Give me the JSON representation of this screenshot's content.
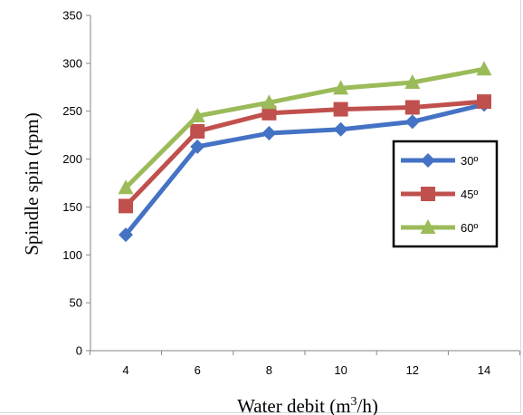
{
  "chart_data": {
    "type": "line",
    "x": [
      4,
      6,
      8,
      10,
      12,
      14
    ],
    "xlabel": "Water debit (m3/h)",
    "ylabel": "Spindle spin (rpm)",
    "ylim": [
      0,
      350
    ],
    "yticks": [
      0,
      50,
      100,
      150,
      200,
      250,
      300,
      350
    ],
    "grid": false,
    "legend_position": "right",
    "series": [
      {
        "name": "30º",
        "color": "#4472c4",
        "marker": "diamond",
        "values": [
          121,
          213,
          227,
          231,
          239,
          257
        ]
      },
      {
        "name": "45º",
        "color": "#c0504d",
        "marker": "square",
        "values": [
          151,
          229,
          248,
          252,
          254,
          260
        ]
      },
      {
        "name": "60º",
        "color": "#9bbb59",
        "marker": "triangle",
        "values": [
          170,
          245,
          259,
          274,
          280,
          294
        ]
      }
    ]
  }
}
